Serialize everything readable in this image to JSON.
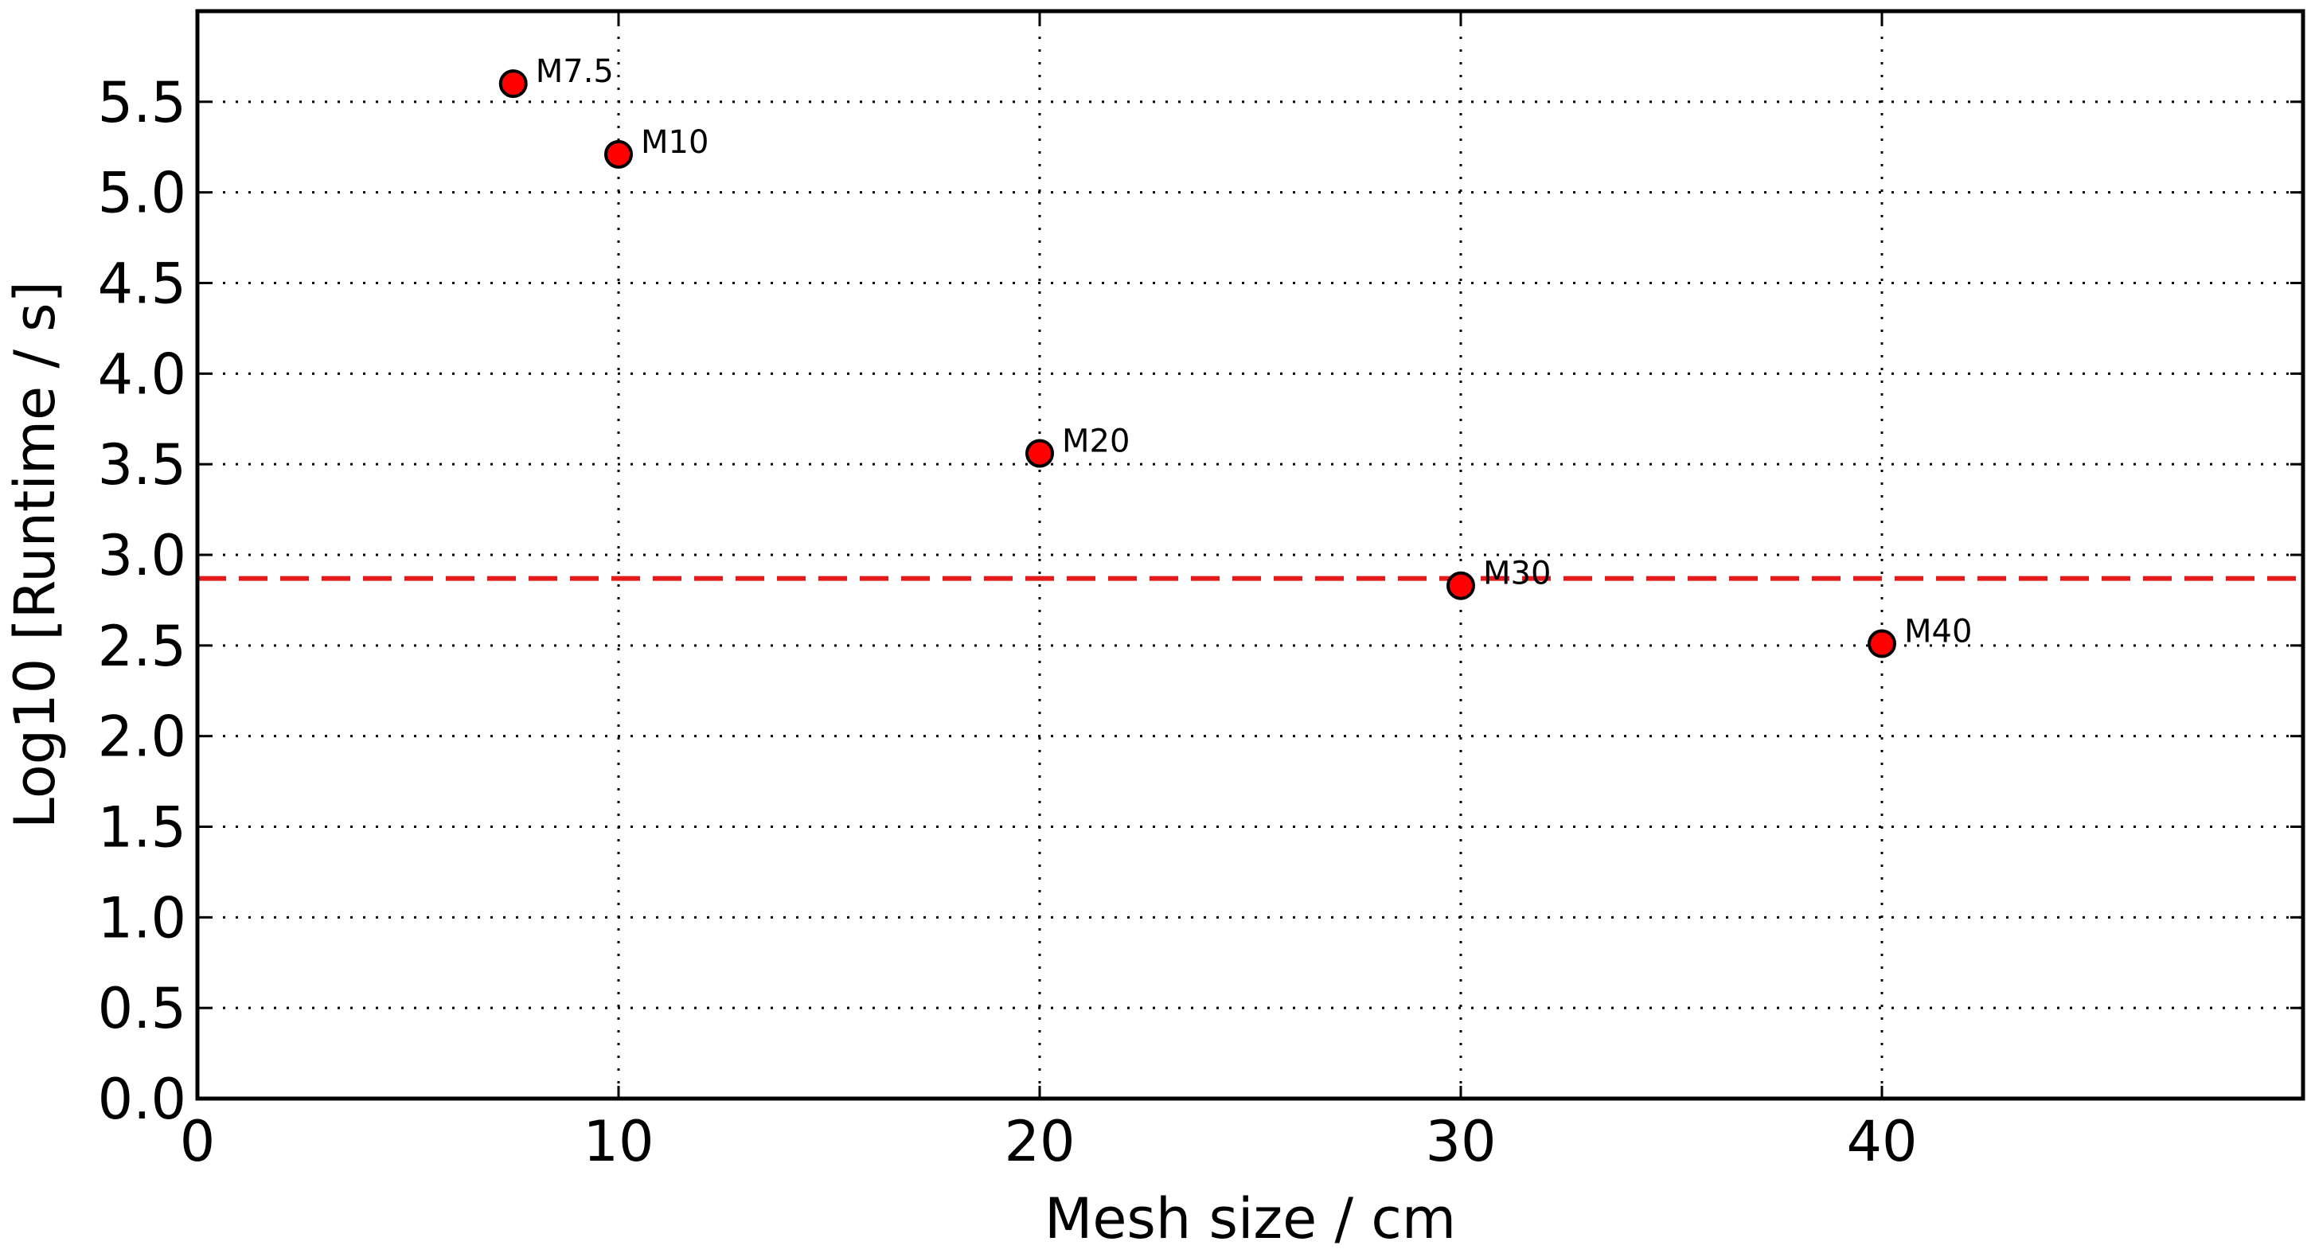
{
  "chart_data": {
    "type": "scatter",
    "title": "",
    "xlabel": "Mesh size / cm",
    "ylabel": "Log10 [Runtime / s]",
    "xlim": [
      0,
      50
    ],
    "ylim": [
      0,
      6
    ],
    "xticks": [
      "0",
      "10",
      "20",
      "30",
      "40"
    ],
    "xtick_values": [
      0,
      10,
      20,
      30,
      40
    ],
    "yticks": [
      "0.0",
      "0.5",
      "1.0",
      "1.5",
      "2.0",
      "2.5",
      "3.0",
      "3.5",
      "4.0",
      "4.5",
      "5.0",
      "5.5"
    ],
    "ytick_values": [
      0.0,
      0.5,
      1.0,
      1.5,
      2.0,
      2.5,
      3.0,
      3.5,
      4.0,
      4.5,
      5.0,
      5.5
    ],
    "grid": true,
    "grid_style": "dotted",
    "legend": "none",
    "series": [
      {
        "marker_color": "#ff0000",
        "marker_edge_color": "#000000",
        "points": [
          {
            "x": 7.5,
            "y": 5.6,
            "label": "M7.5"
          },
          {
            "x": 10,
            "y": 5.21,
            "label": "M10"
          },
          {
            "x": 20,
            "y": 3.56,
            "label": "M20"
          },
          {
            "x": 30,
            "y": 2.83,
            "label": "M30"
          },
          {
            "x": 40,
            "y": 2.51,
            "label": "M40"
          }
        ]
      }
    ],
    "reference_line": {
      "orientation": "horizontal",
      "y": 2.87,
      "color": "#e41a1c",
      "style": "dashed"
    }
  }
}
